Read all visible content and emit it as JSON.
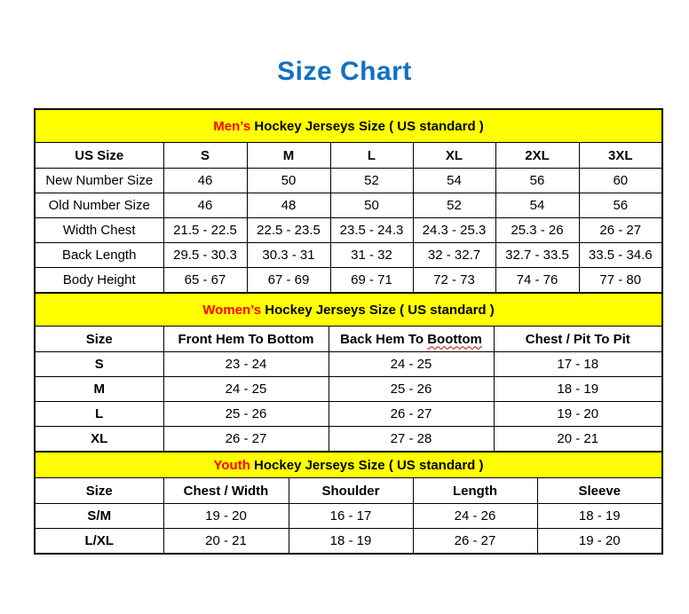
{
  "page": {
    "title": "Size Chart"
  },
  "colors": {
    "title_blue": "#1171c1",
    "band_yellow": "#ffff00",
    "accent_red": "#ff0000",
    "border_black": "#000000"
  },
  "tables": [
    {
      "id": "mens",
      "band": {
        "highlight": "Men’s",
        "rest": " Hockey Jerseys Size ( US standard )"
      },
      "columns": [
        "US Size",
        "S",
        "M",
        "L",
        "XL",
        "2XL",
        "3XL"
      ],
      "rows": [
        [
          "New Number Size",
          "46",
          "50",
          "52",
          "54",
          "56",
          "60"
        ],
        [
          "Old Number Size",
          "46",
          "48",
          "50",
          "52",
          "54",
          "56"
        ],
        [
          "Width Chest",
          "21.5 - 22.5",
          "22.5 - 23.5",
          "23.5 - 24.3",
          "24.3 - 25.3",
          "25.3 - 26",
          "26 - 27"
        ],
        [
          "Back Length",
          "29.5 - 30.3",
          "30.3 - 31",
          "31 - 32",
          "32 - 32.7",
          "32.7 - 33.5",
          "33.5 - 34.6"
        ],
        [
          "Body Height",
          "65 - 67",
          "67 - 69",
          "69 - 71",
          "72 - 73",
          "74 - 76",
          "77 - 80"
        ]
      ],
      "first_col_bold": false
    },
    {
      "id": "womens",
      "band": {
        "highlight": "Women’s",
        "rest": " Hockey Jerseys Size ( US standard )"
      },
      "columns": [
        "Size",
        "Front Hem To Bottom",
        {
          "pre": "Back Hem To ",
          "squiggle": "Boottom"
        },
        "Chest / Pit To Pit"
      ],
      "rows": [
        [
          "S",
          "23 - 24",
          "24 - 25",
          "17 - 18"
        ],
        [
          "M",
          "24 - 25",
          "25 - 26",
          "18 - 19"
        ],
        [
          "L",
          "25 - 26",
          "26 - 27",
          "19 - 20"
        ],
        [
          "XL",
          "26 - 27",
          "27 - 28",
          "20 - 21"
        ]
      ],
      "first_col_bold": true
    },
    {
      "id": "youth",
      "band": {
        "highlight": "Youth",
        "rest": " Hockey Jerseys Size ( US standard )"
      },
      "columns": [
        "Size",
        "Chest / Width",
        "Shoulder",
        "Length",
        "Sleeve"
      ],
      "rows": [
        [
          "S/M",
          "19 - 20",
          "16 - 17",
          "24 - 26",
          "18 - 19"
        ],
        [
          "L/XL",
          "20 - 21",
          "18 - 19",
          "26 - 27",
          "19 - 20"
        ]
      ],
      "first_col_bold": true
    }
  ]
}
